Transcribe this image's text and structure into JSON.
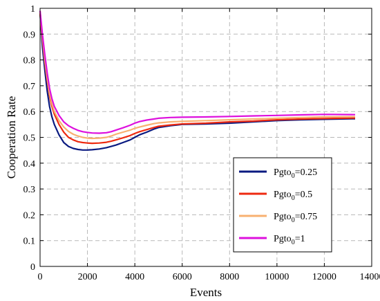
{
  "chart_data": {
    "type": "line",
    "xlabel": "Events",
    "ylabel": "Cooperation Rate",
    "xlim": [
      0,
      14000
    ],
    "ylim": [
      0,
      1
    ],
    "xticks": [
      "0",
      "2000",
      "4000",
      "6000",
      "8000",
      "10000",
      "12000",
      "14000"
    ],
    "yticks": [
      "0",
      "0.1",
      "0.2",
      "0.3",
      "0.4",
      "0.5",
      "0.6",
      "0.7",
      "0.8",
      "0.9",
      "1"
    ],
    "grid": true,
    "legend_position": "bottom-right",
    "series": [
      {
        "name": "Pgto0=0.25",
        "legend_base": "Pgto",
        "legend_sub": "0",
        "legend_rest": "=0.25",
        "color": "#0a1a80",
        "x": [
          0,
          100,
          200,
          300,
          400,
          500,
          600,
          800,
          1000,
          1200,
          1400,
          1600,
          1800,
          2000,
          2200,
          2500,
          2800,
          3000,
          3200,
          3500,
          3800,
          4000,
          4200,
          4500,
          4800,
          5000,
          5500,
          6000,
          7000,
          8000,
          9000,
          10000,
          11000,
          12000,
          13300
        ],
        "y": [
          0.98,
          0.85,
          0.76,
          0.68,
          0.62,
          0.58,
          0.55,
          0.51,
          0.48,
          0.465,
          0.457,
          0.453,
          0.451,
          0.451,
          0.452,
          0.455,
          0.46,
          0.465,
          0.47,
          0.48,
          0.49,
          0.5,
          0.51,
          0.52,
          0.532,
          0.538,
          0.545,
          0.55,
          0.552,
          0.555,
          0.56,
          0.565,
          0.568,
          0.57,
          0.572
        ]
      },
      {
        "name": "Pgto0=0.5",
        "legend_base": "Pgto",
        "legend_sub": "0",
        "legend_rest": "=0.5",
        "color": "#ee2a10",
        "x": [
          0,
          100,
          200,
          300,
          400,
          500,
          600,
          800,
          1000,
          1200,
          1400,
          1600,
          1800,
          2000,
          2200,
          2500,
          2800,
          3000,
          3200,
          3500,
          3800,
          4000,
          4200,
          4500,
          4800,
          5000,
          5500,
          6000,
          7000,
          8000,
          9000,
          10000,
          11000,
          12000,
          13300
        ],
        "y": [
          0.98,
          0.88,
          0.79,
          0.72,
          0.66,
          0.62,
          0.59,
          0.55,
          0.52,
          0.5,
          0.49,
          0.483,
          0.48,
          0.478,
          0.477,
          0.478,
          0.481,
          0.485,
          0.49,
          0.498,
          0.507,
          0.515,
          0.522,
          0.53,
          0.538,
          0.543,
          0.548,
          0.552,
          0.555,
          0.56,
          0.563,
          0.568,
          0.571,
          0.573,
          0.575
        ]
      },
      {
        "name": "Pgto0=0.75",
        "legend_base": "Pgto",
        "legend_sub": "0",
        "legend_rest": "=0.75",
        "color": "#f8b070",
        "x": [
          0,
          100,
          200,
          300,
          400,
          500,
          600,
          800,
          1000,
          1200,
          1400,
          1600,
          1800,
          2000,
          2200,
          2500,
          2800,
          3000,
          3200,
          3500,
          3800,
          4000,
          4200,
          4500,
          4800,
          5000,
          5500,
          6000,
          7000,
          8000,
          9000,
          10000,
          11000,
          12000,
          13300
        ],
        "y": [
          0.99,
          0.89,
          0.8,
          0.73,
          0.67,
          0.63,
          0.6,
          0.565,
          0.54,
          0.523,
          0.512,
          0.505,
          0.5,
          0.497,
          0.496,
          0.497,
          0.5,
          0.505,
          0.512,
          0.52,
          0.528,
          0.535,
          0.54,
          0.547,
          0.553,
          0.556,
          0.56,
          0.562,
          0.565,
          0.568,
          0.571,
          0.574,
          0.577,
          0.579,
          0.58
        ]
      },
      {
        "name": "Pgto0=1",
        "legend_base": "Pgto",
        "legend_sub": "0",
        "legend_rest": "=1",
        "color": "#dd10dd",
        "x": [
          0,
          100,
          200,
          300,
          400,
          500,
          600,
          800,
          1000,
          1200,
          1400,
          1600,
          1800,
          2000,
          2200,
          2500,
          2800,
          3000,
          3200,
          3500,
          3800,
          4000,
          4200,
          4500,
          4800,
          5000,
          5500,
          6000,
          7000,
          8000,
          9000,
          10000,
          11000,
          12000,
          13300
        ],
        "y": [
          0.99,
          0.9,
          0.82,
          0.75,
          0.69,
          0.65,
          0.62,
          0.585,
          0.56,
          0.545,
          0.535,
          0.527,
          0.522,
          0.519,
          0.517,
          0.516,
          0.518,
          0.522,
          0.528,
          0.537,
          0.547,
          0.555,
          0.561,
          0.567,
          0.571,
          0.574,
          0.577,
          0.578,
          0.579,
          0.581,
          0.583,
          0.585,
          0.587,
          0.589,
          0.588
        ]
      }
    ]
  }
}
